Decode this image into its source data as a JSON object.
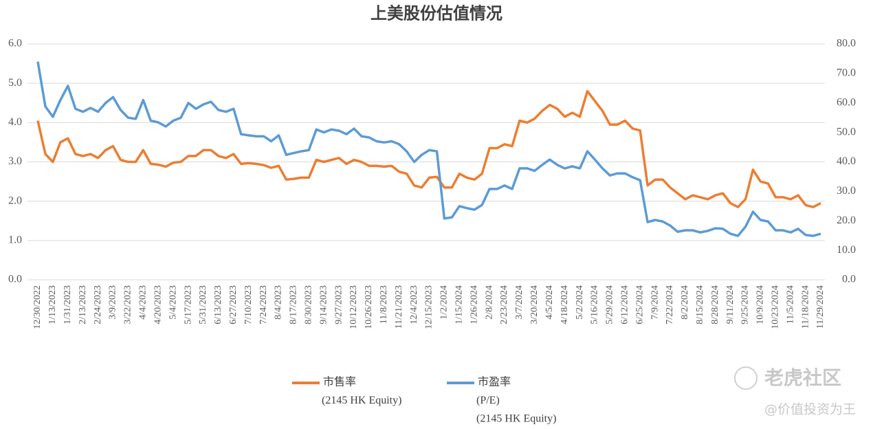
{
  "chart_data": {
    "type": "line",
    "title": "上美股份估值情况",
    "categories": [
      "12/30/2022",
      null,
      "1/13/2023",
      null,
      "1/31/2023",
      null,
      "2/13/2023",
      null,
      "2/24/2023",
      null,
      "3/9/2023",
      null,
      "3/22/2023",
      null,
      "4/4/2023",
      null,
      "4/20/2023",
      null,
      "5/4/2023",
      null,
      "5/17/2023",
      null,
      "5/31/2023",
      null,
      "6/13/2023",
      null,
      "6/27/2023",
      null,
      "7/10/2023",
      null,
      "7/24/2023",
      null,
      "8/4/2023",
      null,
      "8/17/2023",
      null,
      "8/30/2023",
      null,
      "9/14/2023",
      null,
      "9/27/2023",
      null,
      "10/12/2023",
      null,
      "10/26/2023",
      null,
      "11/8/2023",
      null,
      "11/21/2023",
      null,
      "12/4/2023",
      null,
      "12/15/2023",
      null,
      "1/2/2024",
      null,
      "1/15/2024",
      null,
      "1/26/2024",
      null,
      "2/8/2024",
      null,
      "2/23/2024",
      null,
      "3/7/2024",
      null,
      "3/20/2024",
      null,
      "4/5/2024",
      null,
      "4/18/2024",
      null,
      "5/2/2024",
      null,
      "5/16/2024",
      null,
      "5/29/2024",
      null,
      "6/12/2024",
      null,
      "6/25/2024",
      null,
      "7/9/2024",
      null,
      "7/22/2024",
      null,
      "8/2/2024",
      null,
      "8/15/2024",
      null,
      "8/28/2024",
      null,
      "9/11/2024",
      null,
      "9/25/2024",
      null,
      "10/9/2024",
      null,
      "10/23/2024",
      null,
      "11/5/2024",
      null,
      "11/18/2024",
      null,
      "11/29/2024"
    ],
    "series": [
      {
        "name": [
          "市售率",
          "(2145 HK Equity)"
        ],
        "color": "#ed7d31",
        "values": [
          4.05,
          3.2,
          3.0,
          3.5,
          3.6,
          3.2,
          3.15,
          3.2,
          3.1,
          3.3,
          3.4,
          3.05,
          3.0,
          3.0,
          3.3,
          2.95,
          2.93,
          2.88,
          2.98,
          3.0,
          3.15,
          3.15,
          3.3,
          3.3,
          3.15,
          3.1,
          3.2,
          2.95,
          2.97,
          2.95,
          2.92,
          2.85,
          2.9,
          2.55,
          2.57,
          2.6,
          2.6,
          3.05,
          3.0,
          3.05,
          3.1,
          2.95,
          3.05,
          3.0,
          2.9,
          2.9,
          2.88,
          2.9,
          2.75,
          2.7,
          2.4,
          2.35,
          2.6,
          2.62,
          2.35,
          2.35,
          2.7,
          2.6,
          2.55,
          2.7,
          3.35,
          3.35,
          3.45,
          3.4,
          4.05,
          4.0,
          4.1,
          4.3,
          4.45,
          4.35,
          4.15,
          4.25,
          4.15,
          4.8,
          4.55,
          4.3,
          3.95,
          3.95,
          4.05,
          3.85,
          3.8,
          2.4,
          2.55,
          2.55,
          2.35,
          2.2,
          2.05,
          2.15,
          2.1,
          2.05,
          2.15,
          2.2,
          1.95,
          1.85,
          2.05,
          2.8,
          2.5,
          2.45,
          2.1,
          2.1,
          2.05,
          2.15,
          1.9,
          1.85,
          1.95
        ]
      },
      {
        "name": [
          "市盈率",
          "(P/E)",
          "(2145 HK Equity)"
        ],
        "color": "#5b9bd5",
        "axis": "y2",
        "values": [
          74,
          58.8,
          55.3,
          61,
          65.8,
          58,
          57,
          58.3,
          57,
          60,
          62,
          57.6,
          55,
          54.6,
          61,
          54,
          53.4,
          52,
          54,
          55,
          60,
          58,
          59.5,
          60.4,
          57.6,
          57,
          58,
          49.4,
          49,
          48.7,
          48.7,
          47,
          49,
          42.4,
          43,
          43.6,
          44,
          51,
          50,
          51,
          50.6,
          49.4,
          51.3,
          48.7,
          48.3,
          47,
          46.6,
          47,
          46,
          43.6,
          40,
          42.4,
          44,
          43.6,
          20.8,
          21.2,
          25,
          24.3,
          23.8,
          25.4,
          30.8,
          30.8,
          32,
          30.8,
          37.8,
          37.8,
          37,
          39,
          40.8,
          39,
          37.8,
          38.5,
          37.8,
          43.6,
          40.8,
          37.8,
          35.4,
          36.1,
          36.1,
          34.8,
          33.8,
          19.6,
          20.3,
          19.8,
          18.4,
          16.3,
          16.8,
          16.8,
          16.1,
          16.6,
          17.5,
          17.3,
          15.6,
          14.9,
          18,
          23.1,
          20.3,
          19.8,
          16.8,
          16.8,
          16.1,
          17.3,
          15.2,
          14.9,
          15.6
        ]
      }
    ],
    "ylim": [
      0,
      6
    ],
    "yticks": [
      {
        "value": 0,
        "label": "0.0"
      },
      {
        "value": 1,
        "label": "1.0"
      },
      {
        "value": 2,
        "label": "2.0"
      },
      {
        "value": 3,
        "label": "3.0"
      },
      {
        "value": 4,
        "label": "4.0"
      },
      {
        "value": 5,
        "label": "5.0"
      },
      {
        "value": 6,
        "label": "6.0"
      }
    ],
    "y2lim": [
      0,
      80
    ],
    "y2ticks": [
      {
        "value": 0,
        "label": "0.0"
      },
      {
        "value": 10,
        "label": "10.0"
      },
      {
        "value": 20,
        "label": "20.0"
      },
      {
        "value": 30,
        "label": "30.0"
      },
      {
        "value": 40,
        "label": "40.0"
      },
      {
        "value": 50,
        "label": "50.0"
      },
      {
        "value": 60,
        "label": "60.0"
      },
      {
        "value": 70,
        "label": "70.0"
      },
      {
        "value": 80,
        "label": "80.0"
      }
    ],
    "grid": true,
    "legend": "bottom"
  },
  "watermark": {
    "brand": "老虎社区",
    "author": "@价值投资为王"
  }
}
